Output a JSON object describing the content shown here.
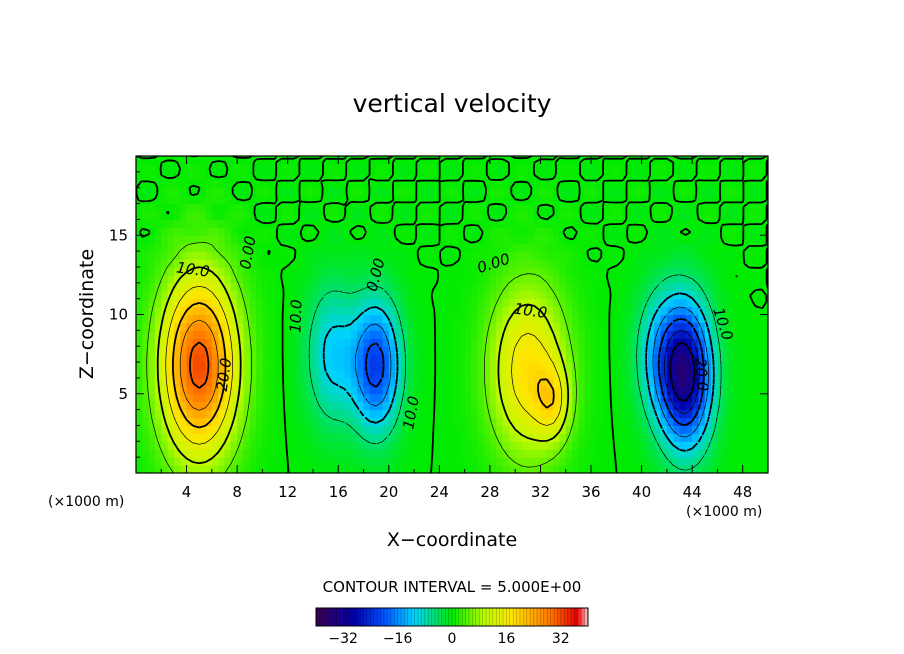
{
  "chart_data": {
    "type": "heatmap",
    "title": "vertical velocity",
    "xlabel": "X−coordinate",
    "ylabel": "Z−coordinate",
    "x_unit": "(×1000 m)",
    "y_unit": "(×1000 m)",
    "xlim": [
      0,
      50
    ],
    "ylim": [
      0,
      20
    ],
    "x_ticks": [
      4,
      8,
      12,
      16,
      20,
      24,
      28,
      32,
      36,
      40,
      44,
      48
    ],
    "x_tick_labels": [
      "4",
      "8",
      "12",
      "16",
      "20",
      "24",
      "28",
      "32",
      "36",
      "40",
      "44",
      "48"
    ],
    "y_ticks": [
      5,
      10,
      15
    ],
    "y_tick_labels": [
      "5",
      "10",
      "15"
    ],
    "contour_interval_label": "CONTOUR INTERVAL = 5.000E+00",
    "contour_interval": 5,
    "colorbar": {
      "range": [
        -40,
        40
      ],
      "ticks": [
        -32,
        -16,
        0,
        16,
        32
      ],
      "tick_labels": [
        "−32",
        "−16",
        "0",
        "16",
        "32"
      ]
    },
    "features": [
      {
        "x": 5,
        "z": 6.8,
        "rx": 4.5,
        "rz": 8.5,
        "peak": 32
      },
      {
        "x": 19,
        "z": 6.8,
        "rx": 2.8,
        "rz": 6.0,
        "peak": -22
      },
      {
        "x": 15.5,
        "z": 7.5,
        "rx": 3.0,
        "rz": 6.5,
        "peak": -11
      },
      {
        "x": 31,
        "z": 6.5,
        "rx": 4.5,
        "rz": 8.0,
        "peak": 18
      },
      {
        "x": 33,
        "z": 4.5,
        "rx": 2.0,
        "rz": 3.5,
        "peak": 10
      },
      {
        "x": 43.5,
        "z": 6.2,
        "rx": 3.0,
        "rz": 6.5,
        "peak": -32
      },
      {
        "x": 41.5,
        "z": 7.5,
        "rx": 3.0,
        "rz": 6.0,
        "peak": -10
      }
    ],
    "contour_labels": [
      {
        "text": "10.0",
        "x": 4.5,
        "z": 12.8,
        "angle": 8
      },
      {
        "text": "20.0",
        "x": 7.0,
        "z": 6.2,
        "angle": -82
      },
      {
        "text": "0.00",
        "x": 8.9,
        "z": 13.9,
        "angle": -80
      },
      {
        "text": "10.0",
        "x": 12.7,
        "z": 9.9,
        "angle": -88
      },
      {
        "text": "0.00",
        "x": 19.0,
        "z": 12.5,
        "angle": -75
      },
      {
        "text": "10.0",
        "x": 21.8,
        "z": 3.8,
        "angle": -80
      },
      {
        "text": "0.00",
        "x": 28.3,
        "z": 13.2,
        "angle": -18
      },
      {
        "text": "10.0",
        "x": 31.2,
        "z": 10.2,
        "angle": 8
      },
      {
        "text": "10.0",
        "x": 46.4,
        "z": 9.4,
        "angle": 72
      },
      {
        "text": "20.0",
        "x": 44.7,
        "z": 6.2,
        "angle": 85
      }
    ]
  }
}
